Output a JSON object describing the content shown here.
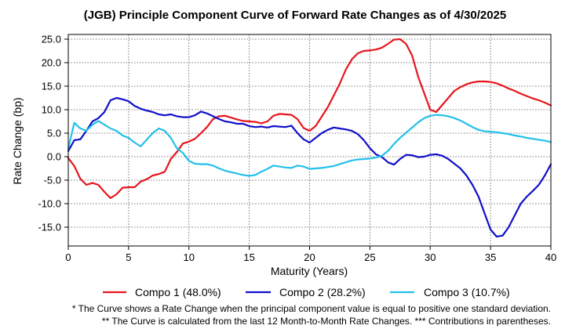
{
  "chart_data": {
    "type": "line",
    "title": "(JGB)  Principle Component Curve of Forward Rate Changes as of 4/30/2025",
    "xlabel": "Maturity (Years)",
    "ylabel": "Rate Change (bp)",
    "xlim": [
      0,
      40
    ],
    "ylim": [
      -19,
      26
    ],
    "xticks": [
      0,
      5,
      10,
      15,
      20,
      25,
      30,
      35,
      40
    ],
    "yticks": [
      -15,
      -10,
      -5,
      0,
      5,
      10,
      15,
      20,
      25
    ],
    "ytick_labels": [
      "-15.0",
      "-10.0",
      "-5.0",
      "0.0",
      "5.0",
      "10.0",
      "15.0",
      "20.0",
      "25.0"
    ],
    "grid": true,
    "legend_position": "bottom",
    "series": [
      {
        "name": "Compo 1 (48.0%)",
        "color": "#e8141c",
        "x": [
          0,
          0.5,
          1,
          1.5,
          2,
          2.5,
          3,
          3.5,
          4,
          4.5,
          5,
          5.5,
          6,
          6.5,
          7,
          7.5,
          8,
          8.5,
          9,
          9.5,
          10,
          10.5,
          11,
          11.5,
          12,
          12.5,
          13,
          13.5,
          14,
          14.5,
          15,
          15.5,
          16,
          16.5,
          17,
          17.5,
          18,
          18.5,
          19,
          19.5,
          20,
          20.5,
          21,
          21.5,
          22,
          22.5,
          23,
          23.5,
          24,
          24.5,
          25,
          25.5,
          26,
          26.5,
          27,
          27.5,
          28,
          28.5,
          29,
          29.5,
          30,
          30.5,
          31,
          31.5,
          32,
          32.5,
          33,
          33.5,
          34,
          34.5,
          35,
          35.5,
          36,
          36.5,
          37,
          37.5,
          38,
          38.5,
          39,
          39.5,
          40
        ],
        "values": [
          -0.3,
          -2,
          -4.7,
          -6,
          -5.6,
          -6,
          -7.5,
          -8.8,
          -8,
          -6.6,
          -6.5,
          -6.5,
          -5.3,
          -4.8,
          -4,
          -3.7,
          -3.2,
          -0.5,
          1,
          2.8,
          3.2,
          3.8,
          5,
          6.3,
          8,
          8.6,
          8.7,
          8.3,
          7.9,
          7.6,
          7.5,
          7.4,
          7.1,
          7.5,
          8.7,
          9.1,
          9,
          8.9,
          8,
          6.1,
          5.5,
          6.5,
          8.5,
          10.5,
          13,
          15.5,
          18.5,
          20.7,
          22,
          22.5,
          22.6,
          22.8,
          23.2,
          24,
          24.9,
          25,
          24,
          21.5,
          17,
          13.5,
          10,
          9.5,
          11,
          12.5,
          14,
          14.8,
          15.4,
          15.8,
          16,
          16,
          15.9,
          15.6,
          15.1,
          14.5,
          14,
          13.4,
          12.9,
          12.4,
          12,
          11.5,
          10.9
        ]
      },
      {
        "name": "Compo 2 (28.2%)",
        "color": "#1010c8",
        "x": [
          0,
          0.5,
          1,
          1.5,
          2,
          2.5,
          3,
          3.5,
          4,
          4.5,
          5,
          5.5,
          6,
          6.5,
          7,
          7.5,
          8,
          8.5,
          9,
          9.5,
          10,
          10.5,
          11,
          11.5,
          12,
          12.5,
          13,
          13.5,
          14,
          14.5,
          15,
          15.5,
          16,
          16.5,
          17,
          17.5,
          18,
          18.5,
          19,
          19.5,
          20,
          20.5,
          21,
          21.5,
          22,
          22.5,
          23,
          23.5,
          24,
          24.5,
          25,
          25.5,
          26,
          26.5,
          27,
          27.5,
          28,
          28.5,
          29,
          29.5,
          30,
          30.5,
          31,
          31.5,
          32,
          32.5,
          33,
          33.5,
          34,
          34.5,
          35,
          35.5,
          36,
          36.5,
          37,
          37.5,
          38,
          38.5,
          39,
          39.5,
          40
        ],
        "values": [
          1.2,
          3.5,
          3.7,
          5.5,
          7.5,
          8.2,
          9.5,
          12,
          12.5,
          12.2,
          11.8,
          10.8,
          10.2,
          9.8,
          9.5,
          9,
          8.8,
          9,
          8.6,
          8.4,
          8.4,
          8.8,
          9.6,
          9.2,
          8.6,
          8,
          7.5,
          7.3,
          7,
          7,
          6.5,
          6.3,
          6.4,
          6.2,
          6.5,
          6.4,
          6.3,
          6.6,
          5,
          3.7,
          3,
          4,
          5,
          5.7,
          6.2,
          6,
          5.8,
          5.5,
          4.8,
          3.5,
          1.8,
          0.5,
          -0.1,
          -1.2,
          -1.7,
          -0.5,
          0.4,
          0.3,
          -0.1,
          0,
          0.4,
          0.5,
          0.2,
          -0.5,
          -1.5,
          -2.5,
          -4,
          -6,
          -8.5,
          -12,
          -15.5,
          -17,
          -16.8,
          -15,
          -12.5,
          -10,
          -8.5,
          -7.3,
          -6,
          -4,
          -1.6
        ]
      },
      {
        "name": "Compo 3 (10.7%)",
        "color": "#22c0ea",
        "x": [
          0,
          0.5,
          1,
          1.5,
          2,
          2.5,
          3,
          3.5,
          4,
          4.5,
          5,
          5.5,
          6,
          6.5,
          7,
          7.5,
          8,
          8.5,
          9,
          9.5,
          10,
          10.5,
          11,
          11.5,
          12,
          12.5,
          13,
          13.5,
          14,
          14.5,
          15,
          15.5,
          16,
          16.5,
          17,
          17.5,
          18,
          18.5,
          19,
          19.5,
          20,
          20.5,
          21,
          21.5,
          22,
          22.5,
          23,
          23.5,
          24,
          24.5,
          25,
          25.5,
          26,
          26.5,
          27,
          27.5,
          28,
          28.5,
          29,
          29.5,
          30,
          30.5,
          31,
          31.5,
          32,
          32.5,
          33,
          33.5,
          34,
          34.5,
          35,
          35.5,
          36,
          36.5,
          37,
          37.5,
          38,
          38.5,
          39,
          39.5,
          40
        ],
        "values": [
          1.8,
          7.2,
          6,
          5.5,
          6.8,
          7.6,
          6.8,
          6,
          5.5,
          4.5,
          4,
          3,
          2.2,
          3.6,
          5,
          6,
          5.5,
          4,
          1.8,
          0.8,
          -0.9,
          -1.5,
          -1.6,
          -1.6,
          -1.9,
          -2.5,
          -3,
          -3.3,
          -3.6,
          -3.9,
          -4.1,
          -3.9,
          -3.2,
          -2.6,
          -1.9,
          -2.1,
          -2.3,
          -2.4,
          -1.9,
          -2.1,
          -2.6,
          -2.5,
          -2.4,
          -2.2,
          -2,
          -1.6,
          -1.2,
          -0.8,
          -0.6,
          -0.5,
          -0.4,
          -0.2,
          0.2,
          1.2,
          2.7,
          4,
          5.1,
          6.2,
          7.3,
          8.2,
          8.7,
          8.9,
          8.8,
          8.6,
          8.2,
          7.7,
          7,
          6.3,
          5.7,
          5.4,
          5.3,
          5.2,
          5,
          4.8,
          4.5,
          4.3,
          4,
          3.8,
          3.6,
          3.4,
          3.1
        ]
      }
    ]
  },
  "notes": {
    "line1": "* The Curve shows a Rate Change when the principal component value is equal to positive one standard deviation.",
    "line2": "** The Curve is calculated from the last 12 Month-to-Month Rate Changes.      *** Contributions in parentheses."
  }
}
